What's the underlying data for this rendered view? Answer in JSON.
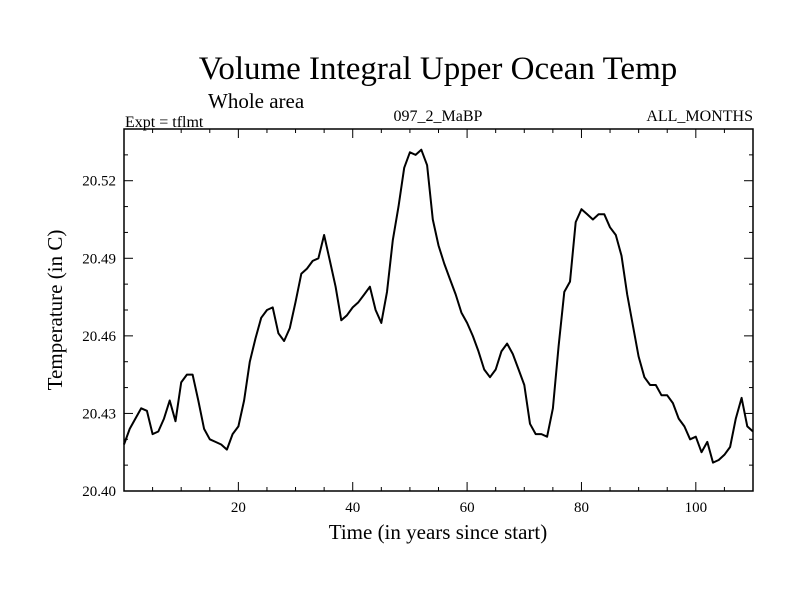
{
  "chart_data": {
    "type": "line",
    "title": "Volume Integral Upper Ocean Temp",
    "subtitle": "Whole area",
    "left_label": "Expt = tflmt",
    "center_label": "097_2_MaBP",
    "right_label": "ALL_MONTHS",
    "xlabel": "Time (in years since start)",
    "ylabel": "Temperature (in C)",
    "xlim": [
      0,
      110
    ],
    "ylim": [
      20.4,
      20.54
    ],
    "x_ticks": [
      20,
      40,
      60,
      80,
      100
    ],
    "x_tick_labels": [
      "20",
      "40",
      "60",
      "80",
      "100"
    ],
    "y_ticks": [
      20.4,
      20.43,
      20.46,
      20.49,
      20.52
    ],
    "y_tick_labels": [
      "20.40",
      "20.43",
      "20.46",
      "20.49",
      "20.52"
    ],
    "grid": false,
    "line_color": "#000000",
    "series": [
      {
        "name": "Temperature",
        "x": [
          0,
          1,
          2,
          3,
          4,
          5,
          6,
          7,
          8,
          9,
          10,
          11,
          12,
          13,
          14,
          15,
          16,
          17,
          18,
          19,
          20,
          21,
          22,
          23,
          24,
          25,
          26,
          27,
          28,
          29,
          30,
          31,
          32,
          33,
          34,
          35,
          36,
          37,
          38,
          39,
          40,
          41,
          42,
          43,
          44,
          45,
          46,
          47,
          48,
          49,
          50,
          51,
          52,
          53,
          54,
          55,
          56,
          57,
          58,
          59,
          60,
          61,
          62,
          63,
          64,
          65,
          66,
          67,
          68,
          69,
          70,
          71,
          72,
          73,
          74,
          75,
          76,
          77,
          78,
          79,
          80,
          81,
          82,
          83,
          84,
          85,
          86,
          87,
          88,
          89,
          90,
          91,
          92,
          93,
          94,
          95,
          96,
          97,
          98,
          99,
          100,
          101,
          102,
          103,
          104,
          105,
          106,
          107,
          108,
          109,
          110
        ],
        "values": [
          20.418,
          20.424,
          20.428,
          20.432,
          20.431,
          20.422,
          20.423,
          20.428,
          20.435,
          20.427,
          20.442,
          20.445,
          20.445,
          20.435,
          20.424,
          20.42,
          20.419,
          20.418,
          20.416,
          20.422,
          20.425,
          20.435,
          20.45,
          20.459,
          20.467,
          20.47,
          20.471,
          20.461,
          20.458,
          20.463,
          20.473,
          20.484,
          20.486,
          20.489,
          20.49,
          20.499,
          20.489,
          20.479,
          20.466,
          20.468,
          20.471,
          20.473,
          20.476,
          20.479,
          20.47,
          20.465,
          20.477,
          20.497,
          20.51,
          20.525,
          20.531,
          20.53,
          20.532,
          20.526,
          20.505,
          20.495,
          20.488,
          20.482,
          20.476,
          20.469,
          20.465,
          20.46,
          20.454,
          20.447,
          20.444,
          20.447,
          20.454,
          20.457,
          20.453,
          20.447,
          20.441,
          20.426,
          20.422,
          20.422,
          20.421,
          20.432,
          20.456,
          20.477,
          20.481,
          20.504,
          20.509,
          20.507,
          20.505,
          20.507,
          20.507,
          20.502,
          20.499,
          20.491,
          20.476,
          20.464,
          20.452,
          20.444,
          20.441,
          20.441,
          20.437,
          20.437,
          20.434,
          20.428,
          20.425,
          20.42,
          20.421,
          20.415,
          20.419,
          20.411,
          20.412,
          20.414,
          20.417,
          20.428,
          20.436,
          20.425,
          20.423
        ]
      }
    ]
  }
}
